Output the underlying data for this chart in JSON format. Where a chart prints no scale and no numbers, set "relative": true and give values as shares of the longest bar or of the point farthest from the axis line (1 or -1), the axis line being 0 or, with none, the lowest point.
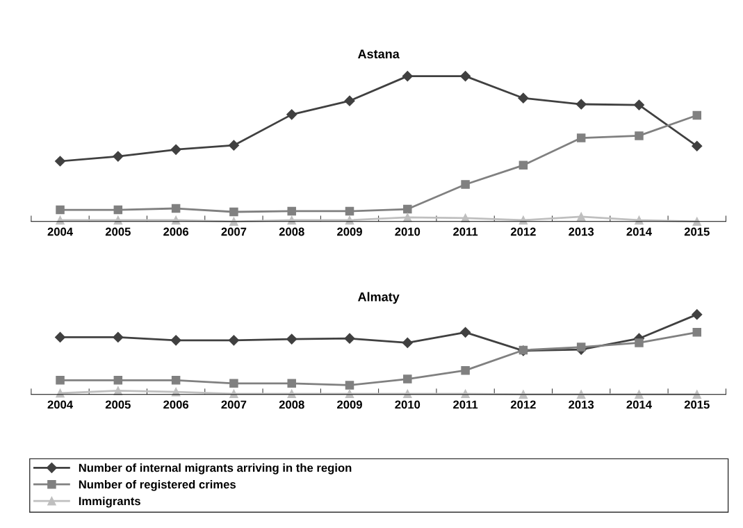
{
  "chart_data": [
    {
      "type": "line",
      "title": "Astana",
      "relative": true,
      "legend": false,
      "grid": false,
      "tick_labels": "x",
      "categories": [
        "2004",
        "2005",
        "2006",
        "2007",
        "2008",
        "2009",
        "2010",
        "2011",
        "2012",
        "2013",
        "2014",
        "2015"
      ],
      "series": [
        {
          "color": "#404040",
          "marker": "diamond",
          "values": [
            0.415,
            0.448,
            0.495,
            0.524,
            0.736,
            0.83,
            1,
            1,
            0.849,
            0.807,
            0.802,
            0.519
          ]
        },
        {
          "color": "#808080",
          "marker": "square",
          "values": [
            0.08,
            0.08,
            0.09,
            0.066,
            0.071,
            0.071,
            0.085,
            0.255,
            0.387,
            0.575,
            0.59,
            0.731
          ]
        },
        {
          "color": "#bfbfbf",
          "marker": "triangle",
          "values": [
            0.009,
            0.009,
            0.009,
            0,
            0.009,
            0.009,
            0.028,
            0.024,
            0.009,
            0.033,
            0.009,
            0
          ]
        }
      ]
    },
    {
      "type": "line",
      "title": "Almaty",
      "relative": true,
      "legend": "bottom",
      "grid": false,
      "tick_labels": "x",
      "categories": [
        "2004",
        "2005",
        "2006",
        "2007",
        "2008",
        "2009",
        "2010",
        "2011",
        "2012",
        "2013",
        "2014",
        "2015"
      ],
      "series": [
        {
          "name": "Number of internal migrants arriving in the region",
          "color": "#404040",
          "marker": "diamond",
          "values": [
            0.715,
            0.715,
            0.677,
            0.677,
            0.692,
            0.7,
            0.646,
            0.777,
            0.546,
            0.562,
            0.7,
            1
          ]
        },
        {
          "name": "Number of registered crimes",
          "color": "#808080",
          "marker": "square",
          "values": [
            0.177,
            0.177,
            0.177,
            0.138,
            0.138,
            0.115,
            0.192,
            0.3,
            0.554,
            0.592,
            0.646,
            0.777
          ]
        },
        {
          "name": "Immigrants",
          "color": "#bfbfbf",
          "marker": "triangle",
          "values": [
            0.015,
            0.046,
            0.031,
            0.008,
            0.008,
            0.008,
            0.008,
            0.008,
            0,
            0,
            0,
            0
          ]
        }
      ]
    }
  ]
}
